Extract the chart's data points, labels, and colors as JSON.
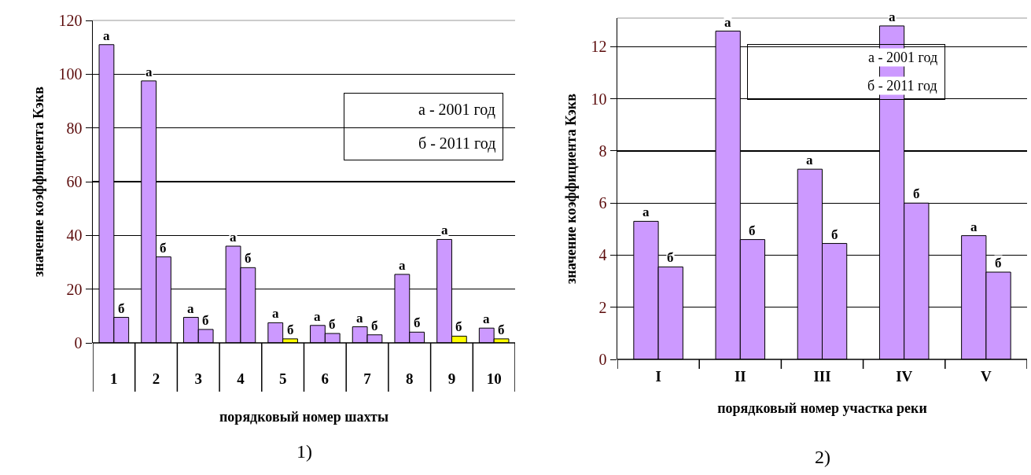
{
  "chart_data": [
    {
      "type": "bar",
      "xlabel": "порядковый номер шахты",
      "ylabel": "значение коэффициента Кэкв",
      "categories": [
        "1",
        "2",
        "3",
        "4",
        "5",
        "6",
        "7",
        "8",
        "9",
        "10"
      ],
      "series": [
        {
          "color": "#cc99ff",
          "values": [
            111,
            97.5,
            9.5,
            36,
            7.5,
            6.5,
            6,
            25.5,
            38.5,
            5.5
          ],
          "value_labels": [
            "а",
            "а",
            "а",
            "а",
            "а",
            "а",
            "а",
            "а",
            "а",
            "а"
          ]
        },
        {
          "colors": [
            "#cc99ff",
            "#cc99ff",
            "#cc99ff",
            "#cc99ff",
            "#ffff00",
            "#cc99ff",
            "#cc99ff",
            "#cc99ff",
            "#ffff00",
            "#ffff00"
          ],
          "values": [
            9.5,
            32,
            5,
            28,
            1.5,
            3.5,
            3,
            4,
            2.5,
            1.5
          ],
          "value_labels": [
            "б",
            "б",
            "б",
            "б",
            "б",
            "б",
            "б",
            "б",
            "б",
            "б"
          ]
        }
      ],
      "ylim": [
        0,
        120
      ],
      "yticks": [
        0,
        20,
        40,
        60,
        80,
        100,
        120
      ],
      "grid": "y",
      "annotations": [
        "а - 2001 год",
        "б - 2011 год",
        "1)"
      ]
    },
    {
      "type": "bar",
      "xlabel": "порядковый номер участка реки",
      "ylabel": "значение коэффициента Кэкв",
      "categories": [
        "I",
        "II",
        "III",
        "IV",
        "V"
      ],
      "series": [
        {
          "color": "#cc99ff",
          "values": [
            5.3,
            12.6,
            7.3,
            12.8,
            4.75
          ],
          "value_labels": [
            "а",
            "а",
            "а",
            "а",
            "а"
          ]
        },
        {
          "color": "#cc99ff",
          "values": [
            3.55,
            4.6,
            4.45,
            6.0,
            3.35
          ],
          "value_labels": [
            "б",
            "б",
            "б",
            "б",
            "б"
          ]
        }
      ],
      "ylim": [
        0,
        13.1
      ],
      "yticks": [
        0,
        2,
        4,
        6,
        8,
        10,
        12
      ],
      "grid": "y",
      "annotations": [
        "а - 2001 год",
        "б - 2011 год",
        "2)"
      ]
    }
  ]
}
